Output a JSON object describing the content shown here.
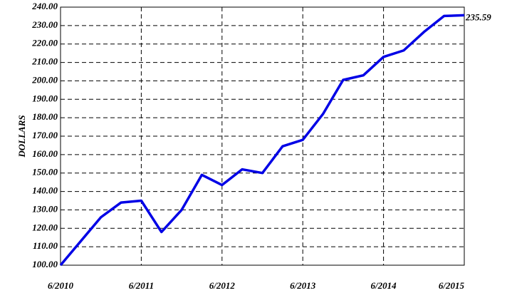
{
  "chart_data": {
    "type": "line",
    "ylabel": "DOLLARS",
    "categories": [
      "6/2010",
      null,
      null,
      null,
      "6/2011",
      null,
      null,
      null,
      "6/2012",
      null,
      null,
      null,
      "6/2013",
      null,
      null,
      null,
      "6/2014",
      null,
      null,
      null,
      "6/2015"
    ],
    "values": [
      100,
      113,
      126,
      134,
      135,
      118,
      130,
      149,
      143.5,
      152,
      150,
      164.5,
      168,
      182,
      200.5,
      203,
      213,
      216.5,
      226.5,
      235.2,
      235.59
    ],
    "color": "#0000e6",
    "ylim": [
      100,
      240
    ],
    "yticks": [
      {
        "value": 100,
        "label": "100.00"
      },
      {
        "value": 110,
        "label": "110.00"
      },
      {
        "value": 120,
        "label": "120.00"
      },
      {
        "value": 130,
        "label": "130.00"
      },
      {
        "value": 140,
        "label": "140.00"
      },
      {
        "value": 150,
        "label": "150.00"
      },
      {
        "value": 160,
        "label": "160.00"
      },
      {
        "value": 170,
        "label": "170.00"
      },
      {
        "value": 180,
        "label": "180.00"
      },
      {
        "value": 190,
        "label": "190.00"
      },
      {
        "value": 200,
        "label": "200.00"
      },
      {
        "value": 210,
        "label": "210.00"
      },
      {
        "value": 220,
        "label": "220.00"
      },
      {
        "value": 230,
        "label": "230.00"
      },
      {
        "value": 240,
        "label": "240.00"
      }
    ],
    "grid": true
  }
}
